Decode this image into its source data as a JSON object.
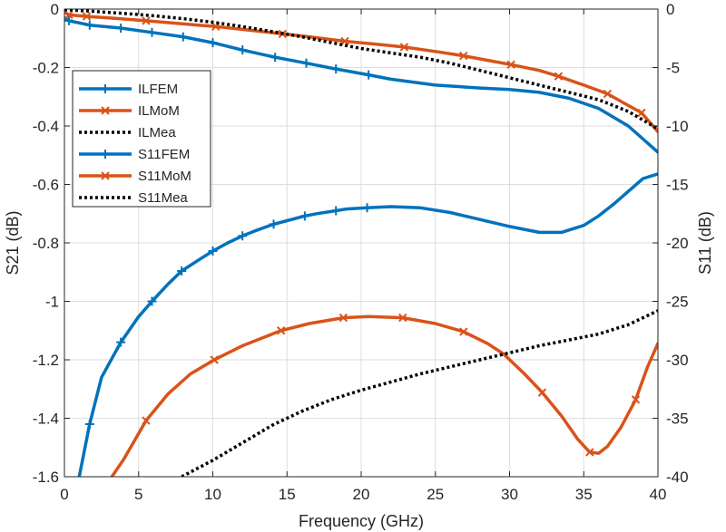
{
  "chart_data": {
    "type": "line",
    "title": "",
    "xlabel": "Frequency (GHz)",
    "ylabel_left": "S21 (dB)",
    "ylabel_right": "S11 (dB)",
    "xlim": [
      0,
      40
    ],
    "ylim_left": [
      -1.6,
      0
    ],
    "ylim_right": [
      -40,
      0
    ],
    "x_ticks": [
      0,
      5,
      10,
      15,
      20,
      25,
      30,
      35,
      40
    ],
    "y_ticks_left": [
      0,
      -0.2,
      -0.4,
      -0.6,
      -0.8,
      -1,
      -1.2,
      -1.4,
      -1.6
    ],
    "y_ticks_right": [
      0,
      -5,
      -10,
      -15,
      -20,
      -25,
      -30,
      -35,
      -40
    ],
    "x_tick_labels": [
      "0",
      "5",
      "10",
      "15",
      "20",
      "25",
      "30",
      "35",
      "40"
    ],
    "y_tick_labels_left": [
      "0",
      "-0.2",
      "-0.4",
      "-0.6",
      "-0.8",
      "-1",
      "-1.2",
      "-1.4",
      "-1.6"
    ],
    "y_tick_labels_right": [
      "0",
      "-5",
      "-10",
      "-15",
      "-20",
      "-25",
      "-30",
      "-35",
      "-40"
    ],
    "grid": true,
    "legend_position": "top-left",
    "series": [
      {
        "name": "ILFEM",
        "axis": "left",
        "color": "#0072BD",
        "marker": "plus",
        "style": "solid",
        "x": [
          0,
          0.3,
          1.7,
          3.8,
          5.9,
          8,
          10,
          12,
          14.2,
          16.3,
          18.3,
          20.5,
          22,
          25,
          28,
          30,
          32,
          34,
          36,
          38,
          40
        ],
        "y": [
          -0.03,
          -0.04,
          -0.055,
          -0.065,
          -0.08,
          -0.095,
          -0.115,
          -0.14,
          -0.165,
          -0.185,
          -0.205,
          -0.225,
          -0.24,
          -0.26,
          -0.27,
          -0.275,
          -0.285,
          -0.305,
          -0.34,
          -0.4,
          -0.49
        ],
        "markers_x": [
          0.3,
          1.7,
          3.8,
          5.9,
          8,
          10,
          12,
          14.2,
          16.3,
          18.3,
          20.5
        ]
      },
      {
        "name": "ILMoM",
        "axis": "left",
        "color": "#D95319",
        "marker": "x",
        "style": "solid",
        "x": [
          0,
          0.3,
          1.5,
          3,
          5.5,
          9,
          10.2,
          13,
          14.7,
          16.5,
          18.9,
          21,
          22.9,
          25,
          26.9,
          29,
          30.1,
          32,
          33.3,
          35,
          36.6,
          38,
          38.9,
          40
        ],
        "y": [
          -0.01,
          -0.02,
          -0.025,
          -0.03,
          -0.04,
          -0.055,
          -0.06,
          -0.075,
          -0.085,
          -0.095,
          -0.11,
          -0.12,
          -0.13,
          -0.145,
          -0.16,
          -0.18,
          -0.19,
          -0.21,
          -0.23,
          -0.26,
          -0.29,
          -0.33,
          -0.355,
          -0.42
        ],
        "markers_x": [
          0.3,
          1.5,
          5.5,
          10.2,
          14.7,
          18.9,
          22.9,
          26.9,
          30.1,
          33.3,
          36.6,
          38.9
        ]
      },
      {
        "name": "ILMea",
        "axis": "left",
        "color": "#000000",
        "marker": "none",
        "style": "dotted",
        "x": [
          0,
          2,
          4,
          6,
          8,
          10,
          12,
          14,
          16,
          18,
          20,
          22,
          24,
          26,
          28,
          30,
          32,
          34,
          36,
          38,
          40
        ],
        "y": [
          -0.002,
          -0.008,
          -0.015,
          -0.023,
          -0.033,
          -0.045,
          -0.06,
          -0.077,
          -0.095,
          -0.115,
          -0.135,
          -0.15,
          -0.165,
          -0.185,
          -0.21,
          -0.235,
          -0.26,
          -0.285,
          -0.31,
          -0.35,
          -0.41
        ]
      },
      {
        "name": "S11FEM",
        "axis": "right",
        "color": "#0072BD",
        "marker": "plus",
        "style": "solid",
        "x": [
          1,
          1.7,
          2.5,
          3.8,
          5,
          5.9,
          7,
          7.9,
          9,
          10,
          11,
          12,
          13,
          14.1,
          15,
          16.2,
          17,
          18.3,
          19,
          20.4,
          22,
          24,
          26,
          28,
          30,
          32,
          33.5,
          35,
          36,
          37,
          38,
          39,
          40
        ],
        "y": [
          -40,
          -35.5,
          -31.5,
          -28.5,
          -26.3,
          -25,
          -23.5,
          -22.4,
          -21.5,
          -20.7,
          -20,
          -19.4,
          -18.9,
          -18.4,
          -18.1,
          -17.7,
          -17.5,
          -17.25,
          -17.1,
          -17.0,
          -16.9,
          -17.0,
          -17.4,
          -18.0,
          -18.6,
          -19.1,
          -19.1,
          -18.5,
          -17.7,
          -16.7,
          -15.6,
          -14.5,
          -14.1
        ],
        "markers_x": [
          1.7,
          3.8,
          5.9,
          7.9,
          10,
          12,
          14.1,
          16.2,
          18.3,
          20.4
        ]
      },
      {
        "name": "S11MoM",
        "axis": "right",
        "color": "#D95319",
        "marker": "x",
        "style": "solid",
        "x": [
          3.2,
          4,
          5.5,
          7,
          8.5,
          10.1,
          12,
          14.6,
          16.5,
          18.8,
          20.5,
          22.8,
          25,
          26.9,
          28.5,
          29.6,
          31,
          32.2,
          33.5,
          34.6,
          35.4,
          36,
          36.6,
          37.5,
          38.5,
          39.3,
          40
        ],
        "y": [
          -40,
          -38.5,
          -35.2,
          -32.9,
          -31.2,
          -30.0,
          -28.8,
          -27.5,
          -26.9,
          -26.4,
          -26.3,
          -26.4,
          -26.9,
          -27.6,
          -28.6,
          -29.5,
          -31.2,
          -32.8,
          -34.8,
          -36.8,
          -37.9,
          -38.0,
          -37.4,
          -35.8,
          -33.4,
          -30.6,
          -28.6
        ],
        "markers_x": [
          5.5,
          10.1,
          14.6,
          18.8,
          22.8,
          26.9,
          32.2,
          35.4,
          38.5
        ]
      },
      {
        "name": "S11Mea",
        "axis": "right",
        "color": "#000000",
        "marker": "none",
        "style": "dotted",
        "x": [
          7.9,
          10,
          12,
          14,
          16,
          18,
          20,
          22,
          24,
          26,
          28,
          30,
          32,
          34,
          36,
          38,
          40
        ],
        "y": [
          -40,
          -38.6,
          -37.1,
          -35.6,
          -34.4,
          -33.4,
          -32.6,
          -31.9,
          -31.2,
          -30.6,
          -30.0,
          -29.4,
          -28.8,
          -28.3,
          -27.8,
          -27.0,
          -25.8
        ]
      }
    ]
  }
}
